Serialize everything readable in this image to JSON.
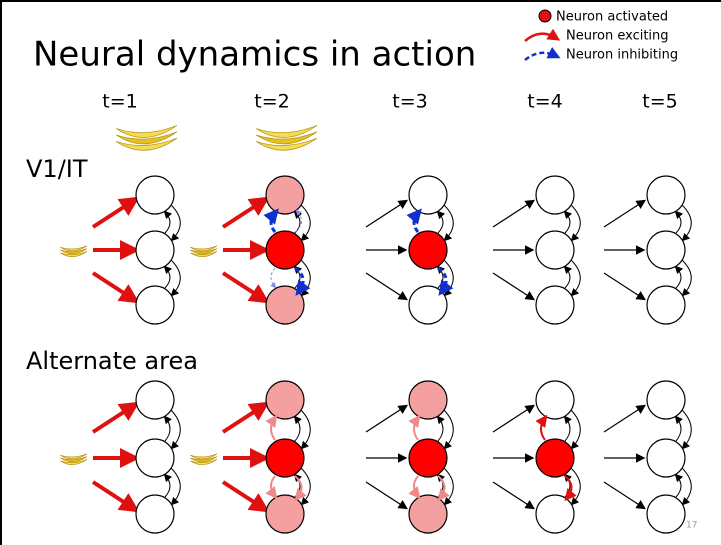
{
  "title": "Neural dynamics in action",
  "legend": {
    "activated": "Neuron activated",
    "exciting": "Neuron exciting",
    "inhibiting": "Neuron inhibiting"
  },
  "time_labels": [
    "t=1",
    "t=2",
    "t=3",
    "t=4",
    "t=5"
  ],
  "rows": [
    "V1/IT",
    "Alternate area"
  ],
  "slide_number": "17"
}
